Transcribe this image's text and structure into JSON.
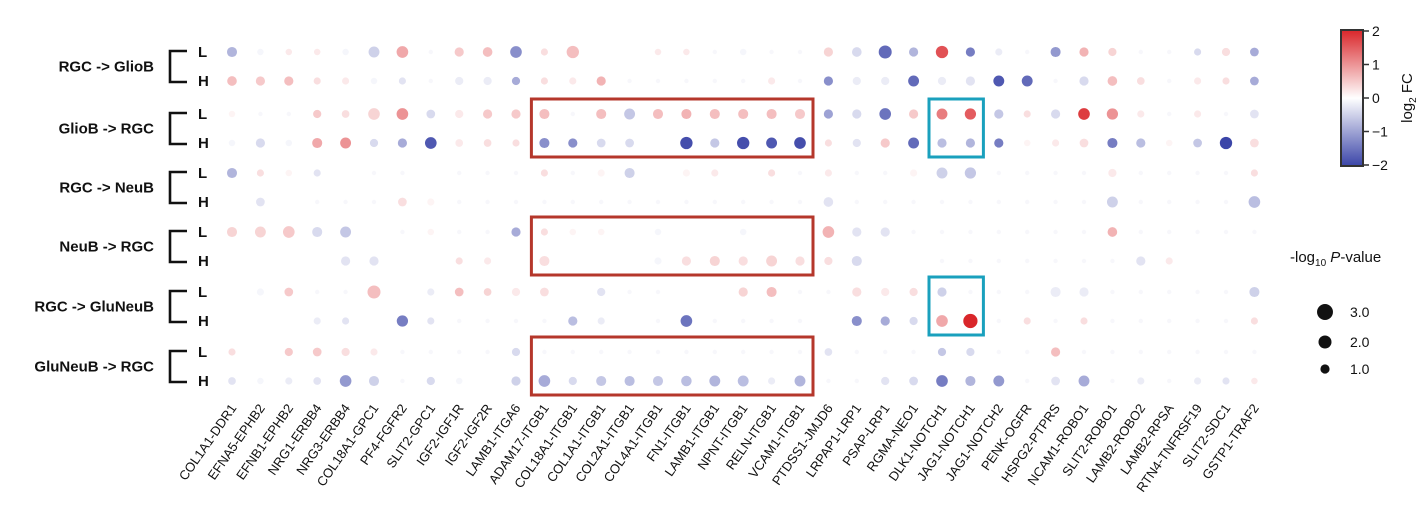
{
  "chart_data": {
    "type": "dotplot",
    "groups": [
      {
        "name": "RGC -> GlioB",
        "rows": [
          "L",
          "H"
        ]
      },
      {
        "name": "GlioB -> RGC",
        "rows": [
          "L",
          "H"
        ]
      },
      {
        "name": "RGC -> NeuB",
        "rows": [
          "L",
          "H"
        ]
      },
      {
        "name": "NeuB -> RGC",
        "rows": [
          "L",
          "H"
        ]
      },
      {
        "name": "RGC -> GluNeuB",
        "rows": [
          "L",
          "H"
        ]
      },
      {
        "name": "GluNeuB -> RGC",
        "rows": [
          "L",
          "H"
        ]
      }
    ],
    "pairs": [
      "COL1A1-DDR1",
      "EFNA5-EPHB2",
      "EFNB1-EPHB2",
      "NRG1-ERBB4",
      "NRG3-ERBB4",
      "COL18A1-GPC1",
      "PF4-FGFR2",
      "SLIT2-GPC1",
      "IGF2-IGF1R",
      "IGF2-IGF2R",
      "LAMB1-ITGA6",
      "ADAM17-ITGB1",
      "COL18A1-ITGB1",
      "COL1A1-ITGB1",
      "COL2A1-ITGB1",
      "COL4A1-ITGB1",
      "FN1-ITGB1",
      "LAMB1-ITGB1",
      "NPNT-ITGB1",
      "RELN-ITGB1",
      "VCAM1-ITGB1",
      "PTDSS1-JMJD6",
      "LRPAP1-LRP1",
      "PSAP-LRP1",
      "RGMA-NEO1",
      "DLK1-NOTCH1",
      "JAG1-NOTCH1",
      "JAG1-NOTCH2",
      "PENK-OGFR",
      "HSPG2-PTPRS",
      "NCAM1-ROBO1",
      "SLIT2-ROBO1",
      "LAMB2-ROBO2",
      "LAMB2-RPSA",
      "RTN4-TNFRSF19",
      "SLIT2-SDC1",
      "GSTP1-TRAF2"
    ],
    "log2fc": [
      [
        -0.8,
        -0.1,
        0.2,
        0.2,
        -0.1,
        -0.5,
        0.8,
        0,
        0.5,
        0.6,
        -1.2,
        0.3,
        0.6,
        0,
        0,
        0.2,
        0.2,
        0,
        -0.1,
        0,
        0,
        0.4,
        -0.4,
        -1.6,
        -0.8,
        1.6,
        -1.4,
        -0.2,
        0,
        -1.1,
        0.7,
        0.4,
        0,
        0,
        -0.4,
        0.3,
        -0.9
      ],
      [
        0.6,
        0.5,
        0.6,
        0.3,
        0.2,
        -0.1,
        -0.3,
        0,
        -0.2,
        -0.2,
        -0.9,
        0.3,
        0.2,
        0.7,
        0,
        0,
        0,
        0,
        0,
        0.2,
        0,
        -1.2,
        -0.2,
        -0.2,
        -1.6,
        -0.2,
        -0.3,
        -1.8,
        -1.6,
        0,
        -0.4,
        0.6,
        0.3,
        0,
        0.2,
        0.3,
        -0.9
      ],
      [
        0.1,
        0,
        0,
        0.5,
        0.3,
        0.4,
        1.0,
        -0.4,
        0.2,
        0.5,
        0.5,
        0.6,
        0,
        0.6,
        -0.6,
        0.6,
        0.7,
        0.6,
        0.6,
        0.6,
        0.5,
        -1.0,
        -0.4,
        -1.5,
        0.5,
        1.2,
        1.5,
        -0.6,
        0.3,
        -0.4,
        1.8,
        1.0,
        0.2,
        0,
        0.2,
        0,
        -0.3
      ],
      [
        -0.1,
        -0.4,
        -0.1,
        0.8,
        1.0,
        -0.4,
        -0.9,
        -1.8,
        0.2,
        0.3,
        0.3,
        -1.2,
        -1.2,
        -0.4,
        -0.4,
        0,
        -1.9,
        -0.6,
        -1.9,
        -1.8,
        -1.9,
        0.3,
        -0.3,
        0.5,
        -1.6,
        -0.7,
        -0.8,
        -1.4,
        0.1,
        0.2,
        0.3,
        -1.4,
        -0.7,
        0.1,
        -0.6,
        -2.0,
        0.3
      ],
      [
        -0.8,
        0.3,
        0.1,
        -0.3,
        0,
        0,
        0,
        0,
        0,
        0,
        0,
        0.3,
        0,
        0.1,
        -0.5,
        0,
        0.1,
        0.2,
        0,
        0.3,
        0,
        0.2,
        0,
        0,
        0.1,
        -0.5,
        -0.6,
        0,
        0,
        0,
        0,
        0.2,
        0,
        0,
        0,
        0,
        0.3
      ],
      [
        0,
        -0.3,
        0,
        0,
        0,
        0,
        0.3,
        0.1,
        0,
        0,
        0,
        0,
        0,
        0,
        0,
        0,
        0,
        0,
        0,
        0,
        0,
        -0.3,
        0,
        0,
        0,
        0,
        0,
        0,
        0,
        0,
        0,
        -0.5,
        0,
        0,
        0,
        0,
        -0.7
      ],
      [
        0.4,
        0.4,
        0.5,
        -0.4,
        -0.6,
        0,
        0,
        0.1,
        0,
        0,
        -0.9,
        0.3,
        0.1,
        0.1,
        0,
        -0.1,
        0,
        0,
        -0.1,
        0,
        0,
        0.7,
        -0.3,
        -0.3,
        0,
        0,
        0,
        0,
        0,
        0,
        0,
        0.7,
        0,
        0,
        0,
        0,
        0
      ],
      [
        0,
        0,
        0,
        0,
        -0.3,
        -0.3,
        0,
        0,
        0.3,
        0.2,
        0,
        0.3,
        0,
        0,
        0,
        -0.1,
        0.3,
        0.4,
        0.3,
        0.4,
        0.3,
        0.3,
        -0.4,
        0,
        0,
        0,
        0,
        0,
        0,
        0,
        0,
        0,
        -0.3,
        0.2,
        0,
        0,
        0
      ],
      [
        0,
        -0.1,
        0.5,
        0,
        0,
        0.6,
        0,
        -0.2,
        0.6,
        0.4,
        0.2,
        0.3,
        0,
        -0.3,
        0,
        0,
        0,
        0,
        0.4,
        0.6,
        0,
        0,
        0.3,
        0.2,
        0.3,
        -0.5,
        0,
        0,
        0,
        -0.2,
        -0.2,
        0,
        0,
        0,
        0,
        0,
        -0.5
      ],
      [
        0,
        0,
        0,
        -0.2,
        -0.3,
        0,
        -1.4,
        -0.3,
        0,
        0,
        0,
        0,
        -0.7,
        -0.2,
        0,
        0,
        -1.5,
        0,
        0,
        0,
        0,
        0,
        -1.2,
        -0.9,
        -0.4,
        0.8,
        2.0,
        0,
        0.3,
        0,
        0.3,
        0,
        0,
        0,
        0,
        0,
        0.3
      ],
      [
        0.3,
        0,
        0.5,
        0.5,
        0.3,
        0.2,
        0,
        0,
        0,
        0,
        -0.4,
        0,
        0,
        0,
        0,
        0,
        0,
        0,
        0,
        0,
        0,
        -0.3,
        0,
        0,
        0,
        -0.6,
        -0.4,
        0,
        0,
        0.6,
        0,
        0,
        0,
        0,
        0,
        0,
        0
      ],
      [
        -0.3,
        -0.1,
        -0.2,
        -0.3,
        -1.1,
        -0.5,
        0,
        -0.4,
        -0.1,
        0,
        -0.5,
        -0.9,
        -0.4,
        -0.6,
        -0.7,
        -0.6,
        -0.7,
        -0.8,
        -0.7,
        -0.2,
        -0.8,
        0,
        0,
        -0.3,
        -0.4,
        -1.4,
        -0.8,
        -1.1,
        0,
        -0.3,
        -0.9,
        0,
        -0.2,
        0,
        -0.2,
        -0.3,
        0.2
      ]
    ],
    "neg_log10_p": [
      [
        1.2,
        0.5,
        0.5,
        0.5,
        0.5,
        1.4,
        1.6,
        0,
        1.0,
        1.1,
        1.6,
        0.6,
        1.8,
        0.5,
        0.5,
        0.5,
        0.5,
        0,
        0.5,
        0,
        0,
        1.0,
        1.1,
        2.0,
        1.0,
        1.8,
        1.0,
        0.6,
        0,
        1.2,
        1.0,
        0.8,
        0,
        0,
        0.6,
        0.8,
        0.9
      ],
      [
        1.1,
        1.0,
        1.0,
        0.6,
        0.6,
        0.5,
        0.6,
        0,
        0.8,
        0.8,
        0.8,
        0.6,
        0.6,
        1.0,
        0,
        0,
        0,
        0,
        0,
        0.6,
        0,
        1.0,
        0.8,
        0.8,
        1.4,
        0.8,
        1.0,
        1.4,
        1.4,
        0,
        1.0,
        1.1,
        0.7,
        0,
        0.6,
        0.6,
        0.9
      ],
      [
        0.5,
        0,
        0,
        0.8,
        0.7,
        1.6,
        1.6,
        0.9,
        0.8,
        1.0,
        1.0,
        1.2,
        0,
        1.2,
        1.4,
        1.2,
        1.2,
        1.2,
        1.2,
        1.2,
        1.2,
        1.0,
        1.0,
        1.6,
        1.0,
        1.4,
        1.5,
        1.0,
        0.6,
        1.0,
        1.6,
        1.5,
        0.6,
        0,
        0.6,
        0,
        0.9
      ],
      [
        0.5,
        1.0,
        0.5,
        1.2,
        1.4,
        0.8,
        1.0,
        1.6,
        0.7,
        0.7,
        0.6,
        1.2,
        1.0,
        0.9,
        0.9,
        0.5,
        1.8,
        1.0,
        1.8,
        1.4,
        1.6,
        0.6,
        0.8,
        1.0,
        1.4,
        1.0,
        1.0,
        1.0,
        0.5,
        0.6,
        0.9,
        1.2,
        1.0,
        0.5,
        0.9,
        1.8,
        0.9
      ],
      [
        1.2,
        0.6,
        0.5,
        0.6,
        0.5,
        0,
        0,
        0.5,
        0,
        0,
        0,
        0.6,
        0,
        0.6,
        1.2,
        0.5,
        0.6,
        0.6,
        0.5,
        0.6,
        0,
        0.6,
        0,
        0,
        0.6,
        1.4,
        1.5,
        0,
        0,
        0,
        0,
        0.8,
        0,
        0,
        0,
        0,
        0.6
      ],
      [
        0.5,
        0.9,
        0.5,
        0,
        0,
        0,
        0.9,
        0.6,
        0,
        0,
        0,
        0,
        0,
        0,
        0,
        0,
        0,
        0,
        0,
        0,
        0,
        1.1,
        0,
        0,
        0,
        0,
        0,
        0,
        0,
        0,
        0,
        1.4,
        0,
        0,
        0,
        0,
        1.6
      ],
      [
        1.2,
        1.4,
        1.6,
        1.2,
        1.4,
        0.5,
        0,
        0.5,
        0,
        0,
        1.0,
        0.6,
        0.5,
        0.5,
        0.5,
        0.5,
        0.5,
        0.5,
        0.5,
        0.5,
        0.5,
        1.6,
        1.0,
        1.0,
        0,
        0,
        0,
        0,
        0,
        0,
        0,
        1.1,
        0,
        0,
        0,
        0,
        0
      ],
      [
        0.5,
        0.5,
        0.5,
        0.6,
        1.0,
        1.0,
        0.5,
        0.5,
        0.6,
        0.6,
        0.5,
        1.2,
        0.5,
        0.5,
        0.5,
        0.6,
        1.0,
        1.2,
        1.0,
        1.4,
        1.0,
        0.8,
        1.2,
        0.5,
        0.5,
        0,
        0,
        0,
        0,
        0,
        0,
        0,
        1.0,
        0.6,
        0.5,
        0.6,
        0.5
      ],
      [
        0.5,
        0.6,
        0.9,
        0,
        0,
        2.0,
        0.5,
        0.6,
        0.9,
        0.7,
        0.8,
        0.9,
        0.5,
        0.8,
        0,
        0,
        0.5,
        0.5,
        1.0,
        1.2,
        0,
        0,
        1.0,
        0.8,
        0.8,
        1.0,
        0,
        0,
        0,
        1.2,
        1.0,
        0,
        0,
        0,
        0,
        0,
        1.2
      ],
      [
        0.5,
        0.5,
        0.5,
        0.6,
        0.6,
        0.5,
        1.5,
        0.6,
        0,
        0,
        0,
        0,
        1.0,
        0.6,
        0.5,
        0,
        1.6,
        0,
        0,
        0,
        0,
        0.5,
        1.2,
        1.0,
        0.8,
        1.6,
        2.4,
        0,
        0.6,
        0,
        0.6,
        0,
        0,
        0,
        0,
        0,
        0.6
      ],
      [
        0.6,
        0.5,
        0.8,
        0.9,
        0.8,
        0.6,
        0,
        0,
        0,
        0,
        0.8,
        0,
        0,
        0,
        0,
        0,
        0,
        0,
        0,
        0,
        0,
        0.7,
        0,
        0,
        0,
        0.8,
        0.8,
        0,
        0,
        1.0,
        0,
        0,
        0,
        0,
        0,
        0,
        0
      ],
      [
        0.7,
        0.5,
        0.6,
        0.7,
        1.6,
        1.2,
        0,
        0.8,
        0.5,
        0.5,
        1.0,
        1.6,
        0.8,
        1.2,
        1.2,
        1.2,
        1.3,
        1.4,
        1.4,
        0.6,
        1.4,
        0,
        0,
        0.8,
        0.9,
        1.6,
        1.2,
        1.4,
        0,
        0.9,
        1.4,
        0,
        0.6,
        0,
        0.6,
        0.6,
        0.5
      ]
    ],
    "highlight_boxes": [
      {
        "color": "#b5372b",
        "group": "GlioB -> RGC",
        "from_pair": "ADAM17-ITGB1",
        "to_pair": "VCAM1-ITGB1"
      },
      {
        "color": "#b5372b",
        "group": "NeuB -> RGC",
        "from_pair": "ADAM17-ITGB1",
        "to_pair": "VCAM1-ITGB1"
      },
      {
        "color": "#b5372b",
        "group": "GluNeuB -> RGC",
        "from_pair": "ADAM17-ITGB1",
        "to_pair": "VCAM1-ITGB1"
      },
      {
        "color": "#1aa0bd",
        "group": "GlioB -> RGC",
        "from_pair": "DLK1-NOTCH1",
        "to_pair": "JAG1-NOTCH1"
      },
      {
        "color": "#1aa0bd",
        "group": "RGC -> GluNeuB",
        "from_pair": "DLK1-NOTCH1",
        "to_pair": "JAG1-NOTCH1"
      }
    ],
    "colorbar": {
      "title": "log2 FC",
      "range": [
        -2,
        2
      ],
      "ticks": [
        "2",
        "1",
        "0",
        "−1",
        "−2"
      ],
      "colors": {
        "low": "#3b45a8",
        "mid": "#ffffff",
        "high": "#d9262a"
      }
    },
    "size_legend": {
      "title": "-log10 P-value",
      "entries": [
        {
          "label": "3.0",
          "value": 3.0
        },
        {
          "label": "2.0",
          "value": 2.0
        },
        {
          "label": "1.0",
          "value": 1.0
        }
      ]
    }
  }
}
